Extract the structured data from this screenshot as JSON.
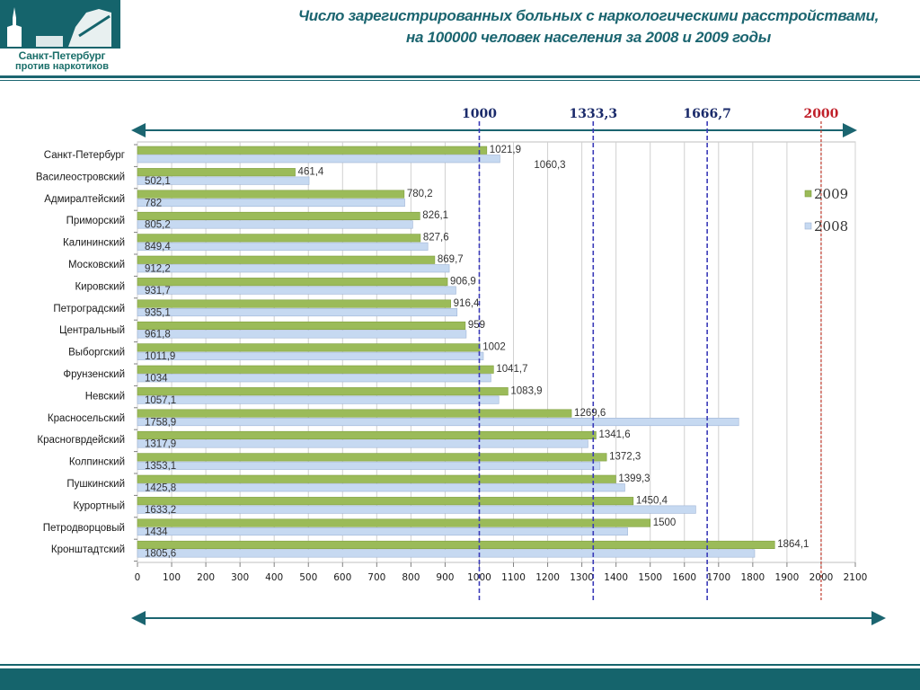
{
  "header": {
    "logo_line1": "Санкт-Петербург",
    "logo_line2": "против наркотиков",
    "title_line1": "Число зарегистрированных больных с наркологическими расстройствами,",
    "title_line2": "на 100000 человек населения за  2008 и 2009 годы"
  },
  "colors": {
    "brand": "#1b6570",
    "series_2009": "#9bbb59",
    "series_2008": "#c6d9f1",
    "ref_line": "#3a3ab8",
    "ref_line_2000": "#c0392b"
  },
  "chart_data": {
    "type": "bar",
    "orientation": "horizontal",
    "categories": [
      "Санкт-Петербург",
      "Василеостровский",
      "Адмиралтейский",
      "Приморский",
      "Калининский",
      "Московский",
      "Кировский",
      "Петроградский",
      "Центральный",
      "Выборгский",
      "Фрунзенский",
      "Невский",
      "Красносельский",
      "Красногврдейский",
      "Колпинский",
      "Пушкинский",
      "Курортный",
      "Петродворцовый",
      "Кронштадтский"
    ],
    "series": [
      {
        "name": "2009",
        "values": [
          1021.9,
          461.4,
          780.2,
          826.1,
          827.6,
          869.7,
          906.9,
          916.4,
          959,
          1002,
          1041.7,
          1083.9,
          1269.6,
          1341.6,
          1372.3,
          1399.3,
          1450.4,
          1500,
          1864.1
        ],
        "labels": [
          "1021,9",
          "461,4",
          "780,2",
          "826,1",
          "827,6",
          "869,7",
          "906,9",
          "916,4",
          "959",
          "1002",
          "1041,7",
          "1083,9",
          "1269,6",
          "1341,6",
          "1372,3",
          "1399,3",
          "1450,4",
          "1500",
          "1864,1"
        ]
      },
      {
        "name": "2008",
        "values": [
          1060.3,
          502.1,
          782,
          805.2,
          849.4,
          912.2,
          931.7,
          935.1,
          961.8,
          1011.9,
          1034,
          1057.1,
          1758.9,
          1317.9,
          1353.1,
          1425.8,
          1633.2,
          1434,
          1805.6
        ],
        "labels": [
          "1060,3",
          "502,1",
          "782",
          "805,2",
          "849,4",
          "912,2",
          "931,7",
          "935,1",
          "961,8",
          "1011,9",
          "1034",
          "1057,1",
          "1758,9",
          "1317,9",
          "1353,1",
          "1425,8",
          "1633,2",
          "1434",
          "1805,6"
        ]
      }
    ],
    "xlim": [
      0,
      2100
    ],
    "xticks": [
      0,
      100,
      200,
      300,
      400,
      500,
      600,
      700,
      800,
      900,
      1000,
      1100,
      1200,
      1300,
      1400,
      1500,
      1600,
      1700,
      1800,
      1900,
      2000,
      2100
    ],
    "reference_lines": [
      {
        "value": 1000,
        "label": "1000"
      },
      {
        "value": 1333.3,
        "label": "1333,3"
      },
      {
        "value": 1666.7,
        "label": "1666,7"
      },
      {
        "value": 2000,
        "label": "2000"
      }
    ],
    "grid": true,
    "legend_position": "right"
  }
}
